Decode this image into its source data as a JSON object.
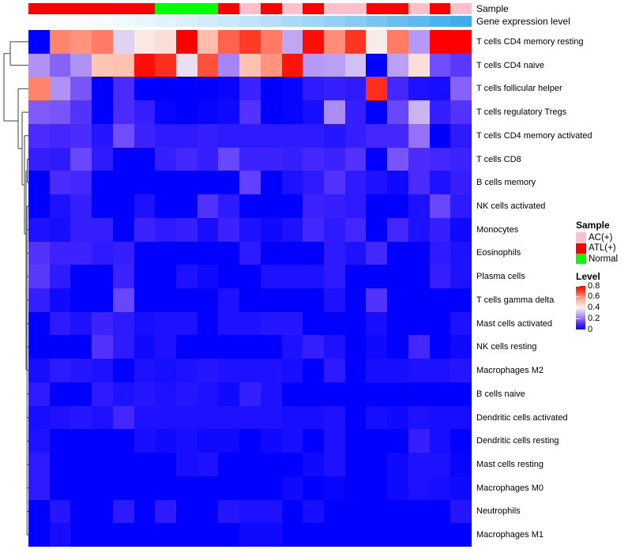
{
  "annotation_rows": {
    "sample_label": "Sample",
    "expression_label": "Gene expression level"
  },
  "legend": {
    "sample_title": "Sample",
    "sample_items": [
      {
        "label": "AC(+)",
        "color": "#FFC0CB"
      },
      {
        "label": "ATL(+)",
        "color": "#FF0000"
      },
      {
        "label": "Normal",
        "color": "#00FF00"
      }
    ],
    "level_title": "Level",
    "level_ticks": [
      "0.8",
      "0.6",
      "0.4",
      "0.2",
      "0"
    ]
  },
  "chart_data": {
    "type": "heatmap",
    "title": "",
    "rows": [
      "T cells CD4 memory resting",
      "T cells CD4 naive",
      "T cells follicular helper",
      "T cells regulatory  Tregs",
      "T cells CD4 memory activated",
      "T cells CD8",
      "B cells memory",
      "NK cells activated",
      "Monocytes",
      "Eosinophils",
      "Plasma cells",
      "T cells gamma delta",
      "Mast cells activated",
      "NK cells resting",
      "Macrophages M2",
      "B cells naive",
      "Dendritic cells activated",
      "Dendritic cells resting",
      "Mast cells resting",
      "Macrophages M0",
      "Neutrophils",
      "Macrophages M1"
    ],
    "n_columns": 21,
    "column_labels": [],
    "value_range": [
      0,
      0.8
    ],
    "colormap": "blue(0) - white(0.4) - red(0.8) diverging",
    "values": [
      [
        0.0,
        0.62,
        0.6,
        0.63,
        0.35,
        0.42,
        0.44,
        0.8,
        0.52,
        0.66,
        0.71,
        0.63,
        0.28,
        0.78,
        0.61,
        0.72,
        0.41,
        0.63,
        0.26,
        0.8,
        0.8
      ],
      [
        0.25,
        0.18,
        0.25,
        0.5,
        0.51,
        0.78,
        0.73,
        0.37,
        0.68,
        0.23,
        0.51,
        0.6,
        0.77,
        0.26,
        0.27,
        0.32,
        0.0,
        0.27,
        0.44,
        0.15,
        0.12
      ],
      [
        0.62,
        0.25,
        0.16,
        0.0,
        0.1,
        0.0,
        0.0,
        0.0,
        0.0,
        0.01,
        0.08,
        0.0,
        0.01,
        0.06,
        0.07,
        0.06,
        0.73,
        0.09,
        0.04,
        0.03,
        0.18
      ],
      [
        0.17,
        0.16,
        0.11,
        0.0,
        0.1,
        0.07,
        0.01,
        0.0,
        0.01,
        0.02,
        0.11,
        0.0,
        0.01,
        0.03,
        0.24,
        0.07,
        0.0,
        0.14,
        0.3,
        0.07,
        0.11
      ],
      [
        0.1,
        0.09,
        0.1,
        0.05,
        0.15,
        0.08,
        0.06,
        0.06,
        0.07,
        0.06,
        0.06,
        0.06,
        0.06,
        0.06,
        0.05,
        0.07,
        0.09,
        0.09,
        0.2,
        0.0,
        0.06
      ],
      [
        0.07,
        0.06,
        0.14,
        0.06,
        0.0,
        0.0,
        0.07,
        0.09,
        0.07,
        0.14,
        0.08,
        0.08,
        0.07,
        0.09,
        0.08,
        0.11,
        0.0,
        0.16,
        0.1,
        0.09,
        0.08
      ],
      [
        0.0,
        0.1,
        0.09,
        0.0,
        0.0,
        0.0,
        0.0,
        0.0,
        0.0,
        0.0,
        0.13,
        0.0,
        0.04,
        0.06,
        0.11,
        0.06,
        0.04,
        0.02,
        0.1,
        0.04,
        0.07
      ],
      [
        0.0,
        0.04,
        0.07,
        0.0,
        0.0,
        0.04,
        0.0,
        0.0,
        0.11,
        0.06,
        0.0,
        0.0,
        0.0,
        0.08,
        0.07,
        0.06,
        0.0,
        0.0,
        0.04,
        0.14,
        0.06
      ],
      [
        0.04,
        0.03,
        0.07,
        0.07,
        0.0,
        0.08,
        0.06,
        0.07,
        0.03,
        0.08,
        0.04,
        0.02,
        0.04,
        0.09,
        0.06,
        0.09,
        0.0,
        0.09,
        0.04,
        0.07,
        0.02
      ],
      [
        0.11,
        0.08,
        0.08,
        0.06,
        0.07,
        0.0,
        0.0,
        0.0,
        0.0,
        0.0,
        0.06,
        0.0,
        0.0,
        0.0,
        0.06,
        0.04,
        0.09,
        0.0,
        0.0,
        0.06,
        0.04
      ],
      [
        0.12,
        0.06,
        0.0,
        0.0,
        0.08,
        0.0,
        0.0,
        0.04,
        0.02,
        0.0,
        0.0,
        0.04,
        0.04,
        0.04,
        0.06,
        0.0,
        0.0,
        0.0,
        0.0,
        0.07,
        0.04
      ],
      [
        0.07,
        0.02,
        0.0,
        0.0,
        0.14,
        0.0,
        0.0,
        0.0,
        0.0,
        0.04,
        0.0,
        0.0,
        0.0,
        0.0,
        0.04,
        0.0,
        0.11,
        0.0,
        0.0,
        0.0,
        0.0
      ],
      [
        0.0,
        0.06,
        0.04,
        0.08,
        0.06,
        0.03,
        0.04,
        0.04,
        0.0,
        0.04,
        0.04,
        0.05,
        0.05,
        0.0,
        0.0,
        0.0,
        0.03,
        0.0,
        0.0,
        0.0,
        0.04
      ],
      [
        0.0,
        0.0,
        0.0,
        0.11,
        0.06,
        0.02,
        0.04,
        0.0,
        0.0,
        0.0,
        0.0,
        0.0,
        0.04,
        0.07,
        0.04,
        0.0,
        0.02,
        0.0,
        0.09,
        0.0,
        0.02
      ],
      [
        0.03,
        0.06,
        0.05,
        0.04,
        0.0,
        0.04,
        0.03,
        0.04,
        0.05,
        0.04,
        0.04,
        0.04,
        0.03,
        0.0,
        0.06,
        0.0,
        0.03,
        0.03,
        0.04,
        0.04,
        0.05
      ],
      [
        0.06,
        0.0,
        0.0,
        0.06,
        0.04,
        0.05,
        0.04,
        0.05,
        0.04,
        0.02,
        0.07,
        0.04,
        0.0,
        0.0,
        0.0,
        0.0,
        0.0,
        0.0,
        0.0,
        0.0,
        0.0
      ],
      [
        0.03,
        0.04,
        0.05,
        0.04,
        0.09,
        0.04,
        0.04,
        0.04,
        0.04,
        0.04,
        0.04,
        0.04,
        0.03,
        0.03,
        0.04,
        0.0,
        0.03,
        0.02,
        0.04,
        0.03,
        0.03
      ],
      [
        0.04,
        0.0,
        0.0,
        0.0,
        0.0,
        0.03,
        0.02,
        0.03,
        0.02,
        0.02,
        0.0,
        0.02,
        0.03,
        0.0,
        0.04,
        0.0,
        0.0,
        0.0,
        0.07,
        0.03,
        0.0
      ],
      [
        0.06,
        0.0,
        0.0,
        0.0,
        0.0,
        0.0,
        0.0,
        0.03,
        0.04,
        0.0,
        0.0,
        0.0,
        0.0,
        0.02,
        0.04,
        0.0,
        0.0,
        0.02,
        0.04,
        0.04,
        0.01
      ],
      [
        0.06,
        0.0,
        0.0,
        0.0,
        0.0,
        0.0,
        0.0,
        0.0,
        0.0,
        0.0,
        0.0,
        0.0,
        0.02,
        0.0,
        0.01,
        0.0,
        0.0,
        0.02,
        0.04,
        0.03,
        0.02
      ],
      [
        0.0,
        0.05,
        0.0,
        0.0,
        0.06,
        0.0,
        0.06,
        0.0,
        0.0,
        0.05,
        0.04,
        0.04,
        0.0,
        0.03,
        0.0,
        0.0,
        0.0,
        0.0,
        0.0,
        0.0,
        0.05
      ],
      [
        0.0,
        0.03,
        0.0,
        0.0,
        0.0,
        0.0,
        0.0,
        0.0,
        0.0,
        0.0,
        0.02,
        0.02,
        0.0,
        0.0,
        0.0,
        0.0,
        0.0,
        0.0,
        0.0,
        0.0,
        0.0
      ]
    ],
    "column_annotations": {
      "sample": [
        "ATL(+)",
        "ATL(+)",
        "ATL(+)",
        "ATL(+)",
        "ATL(+)",
        "ATL(+)",
        "Normal",
        "Normal",
        "Normal",
        "ATL(+)",
        "AC(+)",
        "ATL(+)",
        "AC(+)",
        "ATL(+)",
        "AC(+)",
        "AC(+)",
        "ATL(+)",
        "ATL(+)",
        "AC(+)",
        "ATL(+)",
        "AC(+)"
      ],
      "gene_expression_level": [
        0,
        0.05,
        0.1,
        0.15,
        0.2,
        0.25,
        0.3,
        0.35,
        0.4,
        0.45,
        0.5,
        0.55,
        0.6,
        0.65,
        0.7,
        0.75,
        0.8,
        0.85,
        0.9,
        0.95,
        1
      ]
    },
    "annotation_colors": {
      "AC(+)": "#FFC0CB",
      "ATL(+)": "#FF0000",
      "Normal": "#00FF00",
      "expression_low": "#FFFFFF",
      "expression_high": "#3FACEC"
    },
    "legend_position": "right"
  }
}
